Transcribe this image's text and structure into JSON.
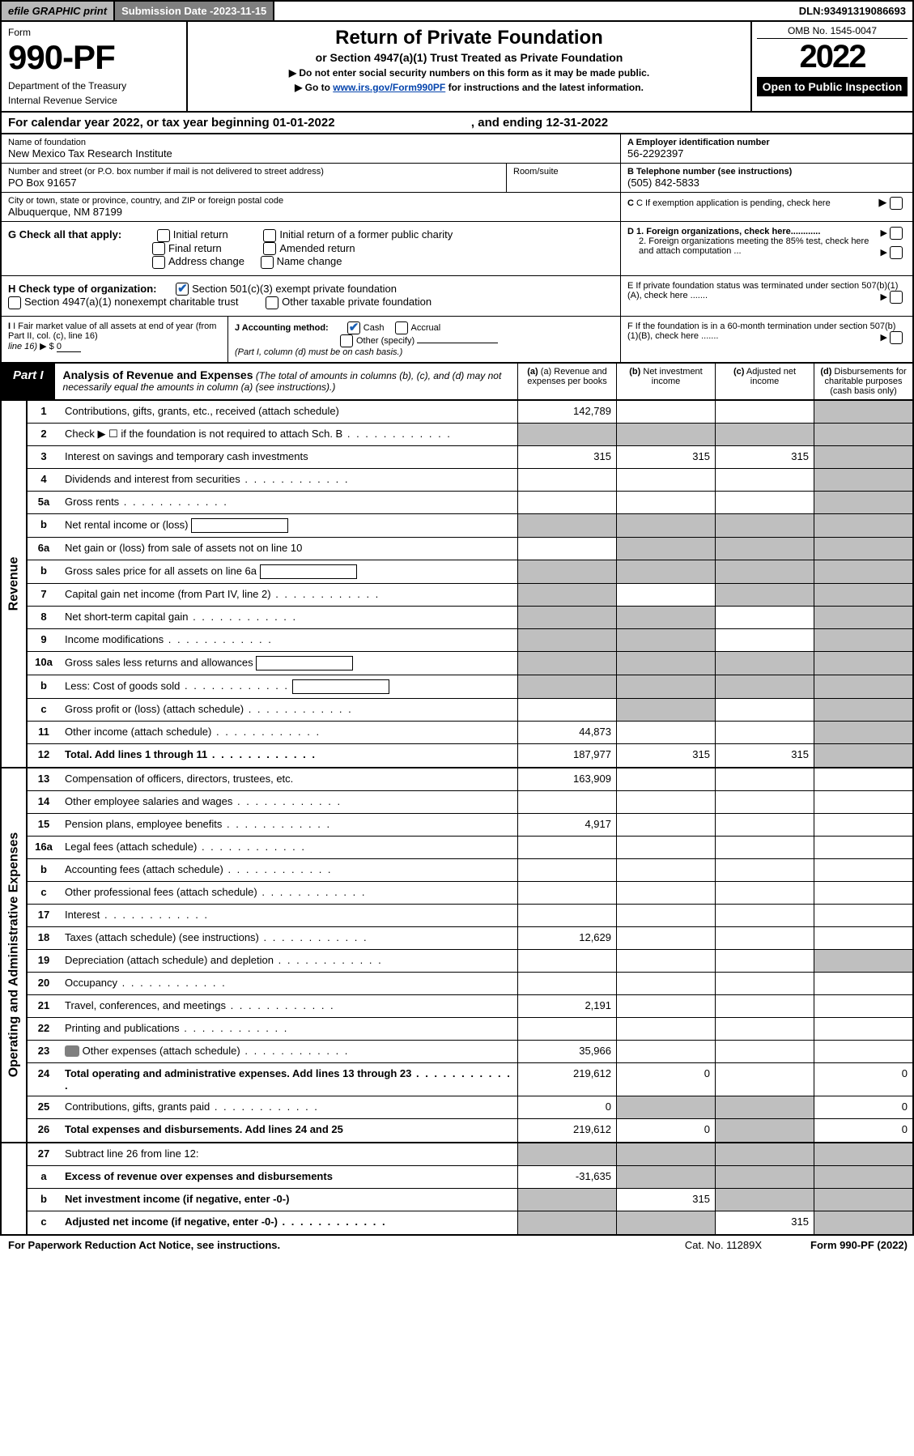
{
  "topbar": {
    "efile_label": "efile GRAPHIC print",
    "sub_date_label": "Submission Date - ",
    "sub_date": "2023-11-15",
    "dln_label": "DLN: ",
    "dln": "93491319086693"
  },
  "header": {
    "form_label": "Form",
    "form_number": "990-PF",
    "dept1": "Department of the Treasury",
    "dept2": "Internal Revenue Service",
    "title": "Return of Private Foundation",
    "subtitle": "or Section 4947(a)(1) Trust Treated as Private Foundation",
    "instr1": "▶ Do not enter social security numbers on this form as it may be made public.",
    "instr2_pre": "▶ Go to ",
    "instr2_link": "www.irs.gov/Form990PF",
    "instr2_post": " for instructions and the latest information.",
    "omb": "OMB No. 1545-0047",
    "year": "2022",
    "open_pub": "Open to Public Inspection"
  },
  "cal_year": {
    "prefix": "For calendar year 2022, or tax year beginning ",
    "begin": "01-01-2022",
    "mid": " , and ending ",
    "end": "12-31-2022"
  },
  "foundation": {
    "name_label": "Name of foundation",
    "name": "New Mexico Tax Research Institute",
    "ein_label": "A Employer identification number",
    "ein": "56-2292397",
    "addr_label": "Number and street (or P.O. box number if mail is not delivered to street address)",
    "addr": "PO Box 91657",
    "room_label": "Room/suite",
    "phone_label": "B Telephone number (see instructions)",
    "phone": "(505) 842-5833",
    "city_label": "City or town, state or province, country, and ZIP or foreign postal code",
    "city": "Albuquerque, NM  87199",
    "c_label": "C If exemption application is pending, check here"
  },
  "g_section": {
    "label": "G Check all that apply:",
    "opts": {
      "initial": "Initial return",
      "initial_former": "Initial return of a former public charity",
      "final": "Final return",
      "amended": "Amended return",
      "addr_change": "Address change",
      "name_change": "Name change"
    }
  },
  "d_section": {
    "d1": "D 1. Foreign organizations, check here............",
    "d2": "2. Foreign organizations meeting the 85% test, check here and attach computation ...",
    "e": "E  If private foundation status was terminated under section 507(b)(1)(A), check here .......",
    "f": "F  If the foundation is in a 60-month termination under section 507(b)(1)(B), check here ......."
  },
  "h_section": {
    "label": "H Check type of organization:",
    "opt1": "Section 501(c)(3) exempt private foundation",
    "opt2": "Section 4947(a)(1) nonexempt charitable trust",
    "opt3": "Other taxable private foundation"
  },
  "i_section": {
    "label": "I Fair market value of all assets at end of year (from Part II, col. (c), line 16)",
    "value_prefix": "▶ $ ",
    "value": "0"
  },
  "j_section": {
    "label": "J Accounting method:",
    "cash": "Cash",
    "accrual": "Accrual",
    "other": "Other (specify)",
    "note": "(Part I, column (d) must be on cash basis.)"
  },
  "part1": {
    "label": "Part I",
    "title": "Analysis of Revenue and Expenses",
    "note": " (The total of amounts in columns (b), (c), and (d) may not necessarily equal the amounts in column (a) (see instructions).)",
    "cols": {
      "a": "(a) Revenue and expenses per books",
      "b": "(b) Net investment income",
      "c": "(c) Adjusted net income",
      "d": "(d) Disbursements for charitable purposes (cash basis only)"
    }
  },
  "side_labels": {
    "revenue": "Revenue",
    "expenses": "Operating and Administrative Expenses"
  },
  "rows": [
    {
      "n": "1",
      "desc": "Contributions, gifts, grants, etc., received (attach schedule)",
      "a": "142,789",
      "b": "",
      "c": "",
      "d": "",
      "grey": [
        "d"
      ]
    },
    {
      "n": "2",
      "desc": "Check ▶ ☐ if the foundation is not required to attach Sch. B",
      "a": "",
      "b": "",
      "c": "",
      "d": "",
      "grey": [
        "a",
        "b",
        "c",
        "d"
      ],
      "dots": true
    },
    {
      "n": "3",
      "desc": "Interest on savings and temporary cash investments",
      "a": "315",
      "b": "315",
      "c": "315",
      "d": "",
      "grey": [
        "d"
      ]
    },
    {
      "n": "4",
      "desc": "Dividends and interest from securities",
      "a": "",
      "b": "",
      "c": "",
      "d": "",
      "grey": [
        "d"
      ],
      "dots": true
    },
    {
      "n": "5a",
      "desc": "Gross rents",
      "a": "",
      "b": "",
      "c": "",
      "d": "",
      "grey": [
        "d"
      ],
      "dots": true
    },
    {
      "n": "b",
      "desc": "Net rental income or (loss)",
      "a": "",
      "b": "",
      "c": "",
      "d": "",
      "grey": [
        "a",
        "b",
        "c",
        "d"
      ],
      "hasinput": true
    },
    {
      "n": "6a",
      "desc": "Net gain or (loss) from sale of assets not on line 10",
      "a": "",
      "b": "",
      "c": "",
      "d": "",
      "grey": [
        "b",
        "c",
        "d"
      ]
    },
    {
      "n": "b",
      "desc": "Gross sales price for all assets on line 6a",
      "a": "",
      "b": "",
      "c": "",
      "d": "",
      "grey": [
        "a",
        "b",
        "c",
        "d"
      ],
      "hasinput": true
    },
    {
      "n": "7",
      "desc": "Capital gain net income (from Part IV, line 2)",
      "a": "",
      "b": "",
      "c": "",
      "d": "",
      "grey": [
        "a",
        "c",
        "d"
      ],
      "dots": true
    },
    {
      "n": "8",
      "desc": "Net short-term capital gain",
      "a": "",
      "b": "",
      "c": "",
      "d": "",
      "grey": [
        "a",
        "b",
        "d"
      ],
      "dots": true
    },
    {
      "n": "9",
      "desc": "Income modifications",
      "a": "",
      "b": "",
      "c": "",
      "d": "",
      "grey": [
        "a",
        "b",
        "d"
      ],
      "dots": true
    },
    {
      "n": "10a",
      "desc": "Gross sales less returns and allowances",
      "a": "",
      "b": "",
      "c": "",
      "d": "",
      "grey": [
        "a",
        "b",
        "c",
        "d"
      ],
      "hasinput": true
    },
    {
      "n": "b",
      "desc": "Less: Cost of goods sold",
      "a": "",
      "b": "",
      "c": "",
      "d": "",
      "grey": [
        "a",
        "b",
        "c",
        "d"
      ],
      "hasinput": true,
      "dots": true
    },
    {
      "n": "c",
      "desc": "Gross profit or (loss) (attach schedule)",
      "a": "",
      "b": "",
      "c": "",
      "d": "",
      "grey": [
        "b",
        "d"
      ],
      "dots": true
    },
    {
      "n": "11",
      "desc": "Other income (attach schedule)",
      "a": "44,873",
      "b": "",
      "c": "",
      "d": "",
      "grey": [
        "d"
      ],
      "dots": true
    },
    {
      "n": "12",
      "desc": "Total. Add lines 1 through 11",
      "a": "187,977",
      "b": "315",
      "c": "315",
      "d": "",
      "grey": [
        "d"
      ],
      "bold": true,
      "dots": true
    }
  ],
  "exp_rows": [
    {
      "n": "13",
      "desc": "Compensation of officers, directors, trustees, etc.",
      "a": "163,909",
      "b": "",
      "c": "",
      "d": ""
    },
    {
      "n": "14",
      "desc": "Other employee salaries and wages",
      "a": "",
      "b": "",
      "c": "",
      "d": "",
      "dots": true
    },
    {
      "n": "15",
      "desc": "Pension plans, employee benefits",
      "a": "4,917",
      "b": "",
      "c": "",
      "d": "",
      "dots": true
    },
    {
      "n": "16a",
      "desc": "Legal fees (attach schedule)",
      "a": "",
      "b": "",
      "c": "",
      "d": "",
      "dots": true
    },
    {
      "n": "b",
      "desc": "Accounting fees (attach schedule)",
      "a": "",
      "b": "",
      "c": "",
      "d": "",
      "dots": true
    },
    {
      "n": "c",
      "desc": "Other professional fees (attach schedule)",
      "a": "",
      "b": "",
      "c": "",
      "d": "",
      "dots": true
    },
    {
      "n": "17",
      "desc": "Interest",
      "a": "",
      "b": "",
      "c": "",
      "d": "",
      "dots": true
    },
    {
      "n": "18",
      "desc": "Taxes (attach schedule) (see instructions)",
      "a": "12,629",
      "b": "",
      "c": "",
      "d": "",
      "dots": true
    },
    {
      "n": "19",
      "desc": "Depreciation (attach schedule) and depletion",
      "a": "",
      "b": "",
      "c": "",
      "d": "",
      "grey": [
        "d"
      ],
      "dots": true
    },
    {
      "n": "20",
      "desc": "Occupancy",
      "a": "",
      "b": "",
      "c": "",
      "d": "",
      "dots": true
    },
    {
      "n": "21",
      "desc": "Travel, conferences, and meetings",
      "a": "2,191",
      "b": "",
      "c": "",
      "d": "",
      "dots": true
    },
    {
      "n": "22",
      "desc": "Printing and publications",
      "a": "",
      "b": "",
      "c": "",
      "d": "",
      "dots": true
    },
    {
      "n": "23",
      "desc": "Other expenses (attach schedule)",
      "a": "35,966",
      "b": "",
      "c": "",
      "d": "",
      "dots": true,
      "icon": true
    },
    {
      "n": "24",
      "desc": "Total operating and administrative expenses. Add lines 13 through 23",
      "a": "219,612",
      "b": "0",
      "c": "",
      "d": "0",
      "bold": true,
      "dots": true
    },
    {
      "n": "25",
      "desc": "Contributions, gifts, grants paid",
      "a": "0",
      "b": "",
      "c": "",
      "d": "0",
      "grey": [
        "b",
        "c"
      ],
      "dots": true
    },
    {
      "n": "26",
      "desc": "Total expenses and disbursements. Add lines 24 and 25",
      "a": "219,612",
      "b": "0",
      "c": "",
      "d": "0",
      "bold": true,
      "grey": [
        "c"
      ]
    }
  ],
  "final_rows": [
    {
      "n": "27",
      "desc": "Subtract line 26 from line 12:",
      "a": "",
      "b": "",
      "c": "",
      "d": "",
      "grey": [
        "a",
        "b",
        "c",
        "d"
      ]
    },
    {
      "n": "a",
      "desc": "Excess of revenue over expenses and disbursements",
      "a": "-31,635",
      "b": "",
      "c": "",
      "d": "",
      "bold": true,
      "grey": [
        "b",
        "c",
        "d"
      ]
    },
    {
      "n": "b",
      "desc": "Net investment income (if negative, enter -0-)",
      "a": "",
      "b": "315",
      "c": "",
      "d": "",
      "bold": true,
      "grey": [
        "a",
        "c",
        "d"
      ]
    },
    {
      "n": "c",
      "desc": "Adjusted net income (if negative, enter -0-)",
      "a": "",
      "b": "",
      "c": "315",
      "d": "",
      "bold": true,
      "grey": [
        "a",
        "b",
        "d"
      ],
      "dots": true
    }
  ],
  "footer": {
    "left": "For Paperwork Reduction Act Notice, see instructions.",
    "cat": "Cat. No. 11289X",
    "right": "Form 990-PF (2022)"
  }
}
